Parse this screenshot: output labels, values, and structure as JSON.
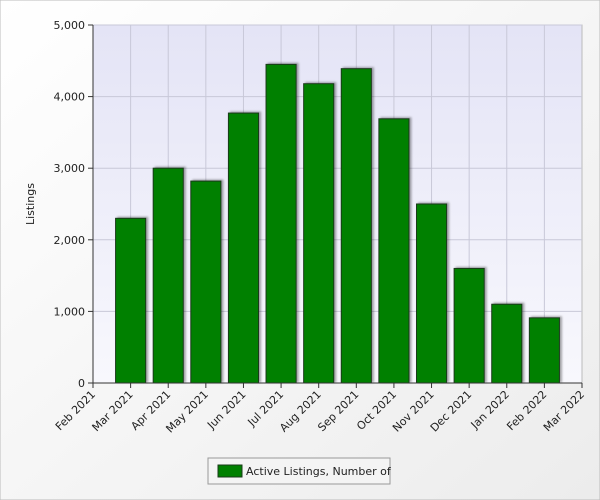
{
  "chart_data": {
    "type": "bar",
    "y_label": "Listings",
    "categories": [
      "Feb 2021",
      "Mar 2021",
      "Apr 2021",
      "May 2021",
      "Jun 2021",
      "Jul 2021",
      "Aug 2021",
      "Sep 2021",
      "Oct 2021",
      "Nov 2021",
      "Dec 2021",
      "Jan 2022",
      "Feb 2022",
      "Mar 2022"
    ],
    "series": [
      {
        "name": "Active Listings, Number of",
        "color": "#008000",
        "values": [
          null,
          2300,
          3000,
          2820,
          3770,
          4450,
          4180,
          4390,
          3690,
          2500,
          1600,
          1100,
          910,
          null
        ]
      }
    ],
    "ylim": [
      0,
      5000
    ],
    "yticks": [
      0,
      {
        "value": 1000,
        "label": "1,000"
      },
      {
        "value": 2000,
        "label": "2,000"
      },
      {
        "value": 3000,
        "label": "3,000"
      },
      {
        "value": 4000,
        "label": "4,000"
      },
      {
        "value": 5000,
        "label": "5,000"
      }
    ],
    "grid": true,
    "legend": "bottom"
  }
}
